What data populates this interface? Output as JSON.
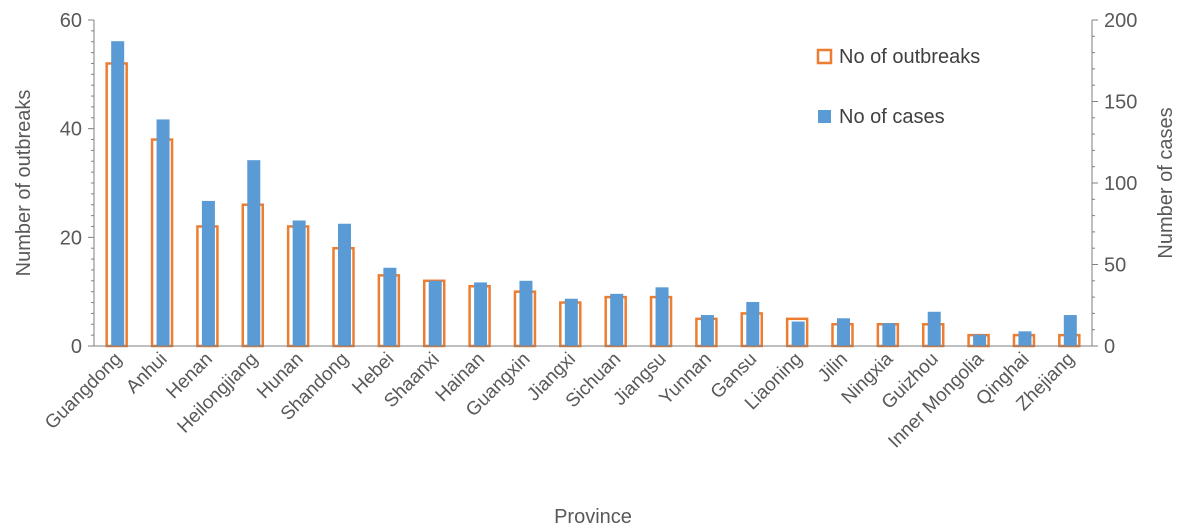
{
  "chart_data": {
    "type": "bar",
    "title": "",
    "xlabel": "Province",
    "ylabel_left": "Number of outbreaks",
    "ylabel_right": "Number of cases",
    "ylim_left": [
      0,
      60
    ],
    "ylim_right": [
      0,
      200
    ],
    "yticks_left": [
      "0",
      "20",
      "40",
      "60"
    ],
    "yticks_right": [
      "0",
      "50",
      "100",
      "150",
      "200"
    ],
    "grid": false,
    "legend_position": "top-right",
    "categories": [
      "Guangdong",
      "Anhui",
      "Henan",
      "Heilongjiang",
      "Hunan",
      "Shandong",
      "Hebei",
      "Shaanxi",
      "Hainan",
      "Guangxin",
      "Jiangxi",
      "Sichuan",
      "Jiangsu",
      "Yunnan",
      "Gansu",
      "Liaoning",
      "Jilin",
      "Ningxia",
      "Guizhou",
      "Inner Mongolia",
      "Qinghai",
      "Zhejiang"
    ],
    "series": [
      {
        "name": "No of outbreaks",
        "axis": "left",
        "style": "outline",
        "color": "#ED7D31",
        "values": [
          52,
          38,
          22,
          26,
          22,
          18,
          13,
          12,
          11,
          10,
          8,
          9,
          9,
          5,
          6,
          5,
          4,
          4,
          4,
          2,
          2,
          2
        ]
      },
      {
        "name": "No of cases",
        "axis": "right",
        "style": "filled",
        "color": "#5B9BD5",
        "values": [
          187,
          139,
          89,
          114,
          77,
          75,
          48,
          40,
          39,
          40,
          29,
          32,
          36,
          19,
          27,
          15,
          17,
          14,
          21,
          7,
          9,
          19
        ]
      }
    ]
  }
}
